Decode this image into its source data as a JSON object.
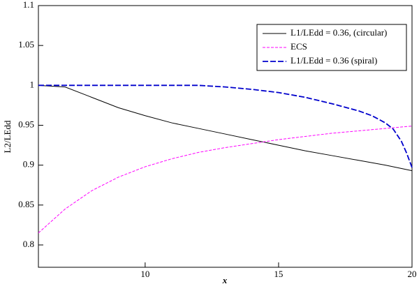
{
  "chart_data": {
    "type": "line",
    "x_label": "x",
    "y_label": "L2/LEdd",
    "xlim": [
      6,
      20
    ],
    "xticks": [
      10,
      15,
      20
    ],
    "ylim": [
      0.772,
      1.1
    ],
    "yticks": [
      0.8,
      0.85,
      0.9,
      0.95,
      1,
      1.05,
      1.1
    ],
    "legend": "upper right",
    "series": [
      {
        "name": "L1/LEdd = 0.36, (circular)",
        "color": "#000000",
        "dash": "solid",
        "x": [
          6,
          7,
          8,
          9,
          10,
          11,
          12,
          13,
          14,
          15,
          16,
          17,
          18,
          19,
          20
        ],
        "values": [
          1.0,
          0.998,
          0.985,
          0.972,
          0.962,
          0.953,
          0.946,
          0.939,
          0.932,
          0.925,
          0.918,
          0.912,
          0.906,
          0.9,
          0.893
        ]
      },
      {
        "name": "ECS",
        "color": "#ff00ff",
        "dash": "short",
        "x": [
          6,
          7,
          8,
          9,
          10,
          11,
          12,
          13,
          14,
          15,
          16,
          17,
          18,
          19,
          20
        ],
        "values": [
          0.815,
          0.845,
          0.868,
          0.885,
          0.898,
          0.908,
          0.916,
          0.922,
          0.927,
          0.932,
          0.936,
          0.94,
          0.943,
          0.946,
          0.949
        ]
      },
      {
        "name": "L1/LEdd = 0.36 (spiral)",
        "color": "#0000cc",
        "dash": "long",
        "x": [
          6,
          8,
          10,
          12,
          13,
          14,
          15,
          16,
          17,
          18,
          18.5,
          19,
          19.3,
          19.6,
          19.8,
          20
        ],
        "values": [
          1.0,
          1.0,
          1.0,
          1.0,
          0.998,
          0.995,
          0.991,
          0.985,
          0.977,
          0.968,
          0.962,
          0.953,
          0.945,
          0.93,
          0.915,
          0.897
        ]
      }
    ]
  }
}
